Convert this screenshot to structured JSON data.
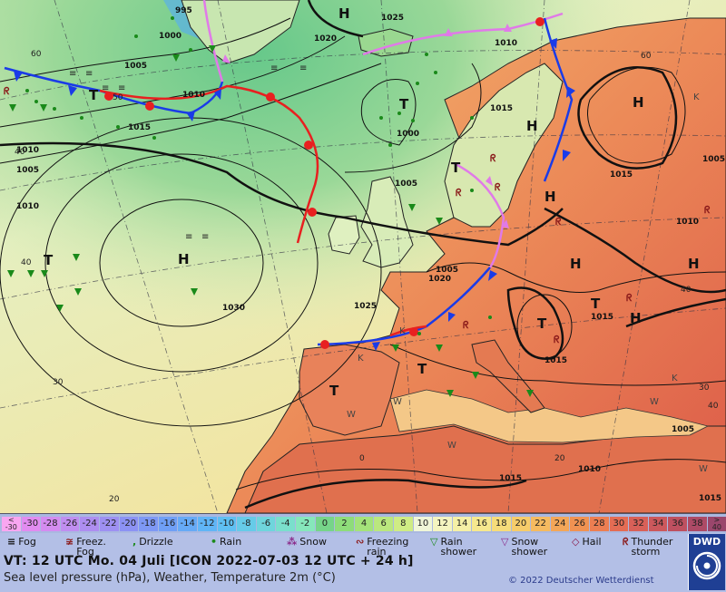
{
  "map": {
    "isobar_labels": [
      "995",
      "1000",
      "1005",
      "1010",
      "1015",
      "1020",
      "1025",
      "1030",
      "1015",
      "1010",
      "1005",
      "1000",
      "1005",
      "1010",
      "1015",
      "1015",
      "1020",
      "1025",
      "1015",
      "1005",
      "1010",
      "1010",
      "1015",
      "1005",
      "1010",
      "1015",
      "1005"
    ],
    "pressure_centers": [
      "H",
      "H",
      "H",
      "H",
      "H",
      "H",
      "H",
      "H",
      "T",
      "T",
      "T",
      "T",
      "T",
      "T",
      "T",
      "T"
    ],
    "temp_labels": [
      "60",
      "50",
      "40",
      "40",
      "30",
      "20",
      "20",
      "0",
      "60",
      "40",
      "40",
      "30"
    ],
    "place_markers": [
      "K",
      "K",
      "K",
      "W",
      "W",
      "W",
      "W",
      "W",
      "K"
    ]
  },
  "scale": {
    "cells": [
      {
        "label": "<\n-30",
        "color": "#f9a6f0"
      },
      {
        "label": "-30",
        "color": "#e28cf0"
      },
      {
        "label": "-28",
        "color": "#d48cf0"
      },
      {
        "label": "-26",
        "color": "#c08ef0"
      },
      {
        "label": "-24",
        "color": "#ae8ef0"
      },
      {
        "label": "-22",
        "color": "#9e90f2"
      },
      {
        "label": "-20",
        "color": "#8c92f4"
      },
      {
        "label": "-18",
        "color": "#7e98f5"
      },
      {
        "label": "-16",
        "color": "#6f9ff6"
      },
      {
        "label": "-14",
        "color": "#66aaf6"
      },
      {
        "label": "-12",
        "color": "#60b5f6"
      },
      {
        "label": "-10",
        "color": "#5fc0f2"
      },
      {
        "label": "-8",
        "color": "#66cbe8"
      },
      {
        "label": "-6",
        "color": "#6fd5dc"
      },
      {
        "label": "-4",
        "color": "#7adfcc"
      },
      {
        "label": "-2",
        "color": "#86e7bb"
      },
      {
        "label": "0",
        "color": "#76d489"
      },
      {
        "label": "2",
        "color": "#8edc7a"
      },
      {
        "label": "4",
        "color": "#a4e27a"
      },
      {
        "label": "6",
        "color": "#bae77e"
      },
      {
        "label": "8",
        "color": "#cfec84"
      },
      {
        "label": "10",
        "color": "#f0f6d8"
      },
      {
        "label": "12",
        "color": "#f4f4c0"
      },
      {
        "label": "14",
        "color": "#f5f0a6"
      },
      {
        "label": "16",
        "color": "#f6e88e"
      },
      {
        "label": "18",
        "color": "#f6dc7a"
      },
      {
        "label": "20",
        "color": "#f6cc6a"
      },
      {
        "label": "22",
        "color": "#f5ba60"
      },
      {
        "label": "24",
        "color": "#f3a658"
      },
      {
        "label": "26",
        "color": "#f09252"
      },
      {
        "label": "28",
        "color": "#ec7e52"
      },
      {
        "label": "30",
        "color": "#e46c54"
      },
      {
        "label": "32",
        "color": "#d86058"
      },
      {
        "label": "34",
        "color": "#cc585c"
      },
      {
        "label": "36",
        "color": "#be5060"
      },
      {
        "label": "38",
        "color": "#ad4a66"
      },
      {
        "label": ">\n40",
        "color": "#9a466c"
      }
    ]
  },
  "legend": {
    "fog": "Fog",
    "freezing_fog": "Freez.\nFog",
    "drizzle": "Drizzle",
    "rain": "Rain",
    "snow": "Snow",
    "freezing_rain": "Freezing\nrain",
    "rain_shower": "Rain\nshower",
    "snow_shower": "Snow\nshower",
    "hail": "Hail",
    "thunderstorm": "Thunder\nstorm"
  },
  "footer": {
    "valid_time": "VT: 12 UTC Mo.  04 Juli [ICON 2022-07-03  12 UTC + 24 h]",
    "subtitle": "Sea level pressure (hPa), Weather, Temperature 2m (°C)",
    "copyright": "© 2022 Deutscher Wetterdienst",
    "logo_text": "DWD"
  },
  "colors": {
    "cold_front": "#1a3be8",
    "warm_front": "#e82020",
    "occluded_front": "#e07ae8",
    "land_hot": "#e86a4a",
    "sea_warm": "#f2e8a0",
    "sea_cool": "#7fd88a"
  }
}
